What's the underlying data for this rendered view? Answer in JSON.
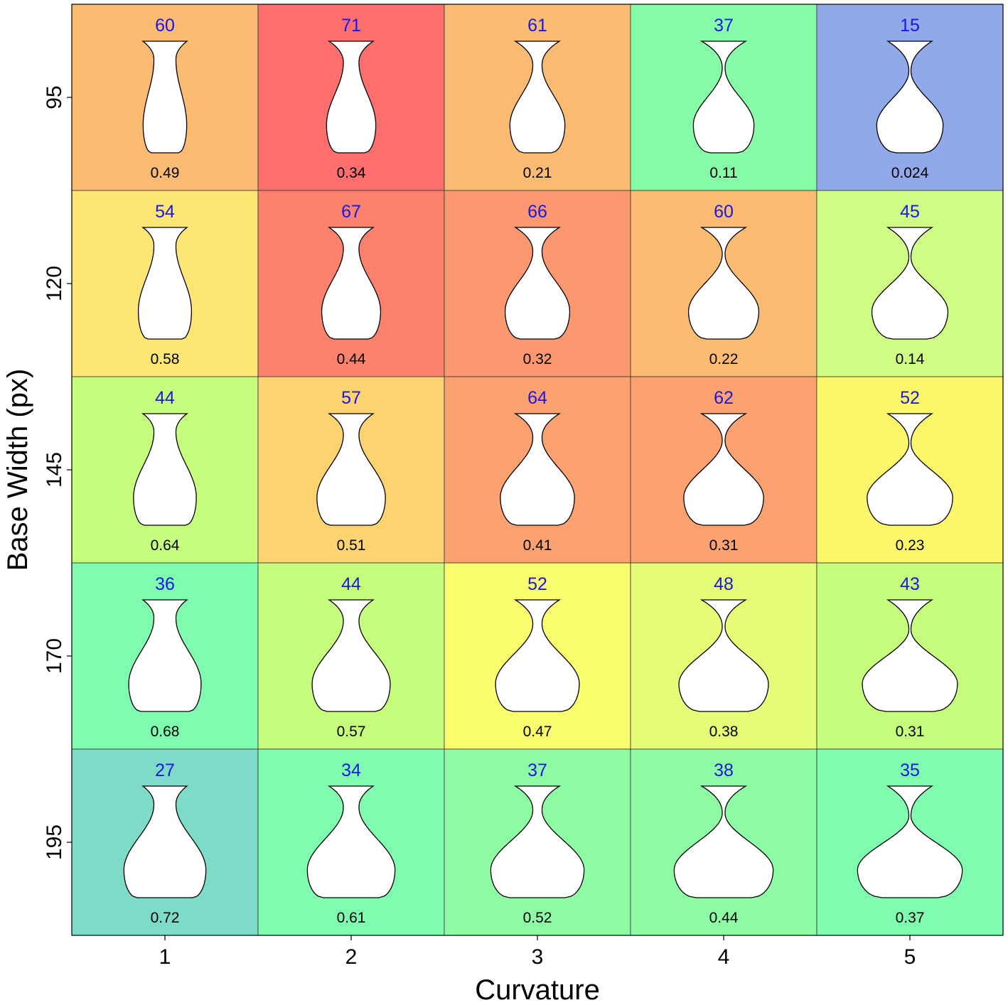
{
  "chart_data": {
    "type": "heatmap",
    "title": "",
    "xlabel": "Curvature",
    "ylabel": "Base Width (px)",
    "x_categories": [
      "1",
      "2",
      "3",
      "4",
      "5"
    ],
    "y_categories": [
      "95",
      "120",
      "145",
      "170",
      "195"
    ],
    "base_width_values": [
      95,
      120,
      145,
      170,
      195
    ],
    "curvature_values": [
      1,
      2,
      3,
      4,
      5
    ],
    "cell_values_top": [
      [
        "60",
        "71",
        "61",
        "37",
        "15"
      ],
      [
        "54",
        "67",
        "66",
        "60",
        "45"
      ],
      [
        "44",
        "57",
        "64",
        "62",
        "52"
      ],
      [
        "36",
        "44",
        "52",
        "48",
        "43"
      ],
      [
        "27",
        "34",
        "37",
        "38",
        "35"
      ]
    ],
    "cell_values_bottom": [
      [
        "0.49",
        "0.34",
        "0.21",
        "0.11",
        "0.024"
      ],
      [
        "0.58",
        "0.44",
        "0.32",
        "0.22",
        "0.14"
      ],
      [
        "0.64",
        "0.51",
        "0.41",
        "0.31",
        "0.23"
      ],
      [
        "0.68",
        "0.57",
        "0.47",
        "0.38",
        "0.31"
      ],
      [
        "0.72",
        "0.61",
        "0.52",
        "0.44",
        "0.37"
      ]
    ],
    "cell_colors": [
      [
        "#fcbb72",
        "#fd6f6f",
        "#fcbb72",
        "#86fca8",
        "#91a8ea"
      ],
      [
        "#fde673",
        "#fc826e",
        "#fc9870",
        "#fcbb72",
        "#cefc85"
      ],
      [
        "#c7fd7c",
        "#fcd370",
        "#fca271",
        "#fca271",
        "#fcf76a"
      ],
      [
        "#7ffcaf",
        "#c7fd7c",
        "#fafd6e",
        "#e5fd77",
        "#c7fd7c"
      ],
      [
        "#7ddbc8",
        "#7ffcaf",
        "#8dfca4",
        "#8dfca4",
        "#7ffcaf"
      ]
    ],
    "label_colors": {
      "top": "#1a17e6",
      "bottom": "#000000"
    }
  }
}
